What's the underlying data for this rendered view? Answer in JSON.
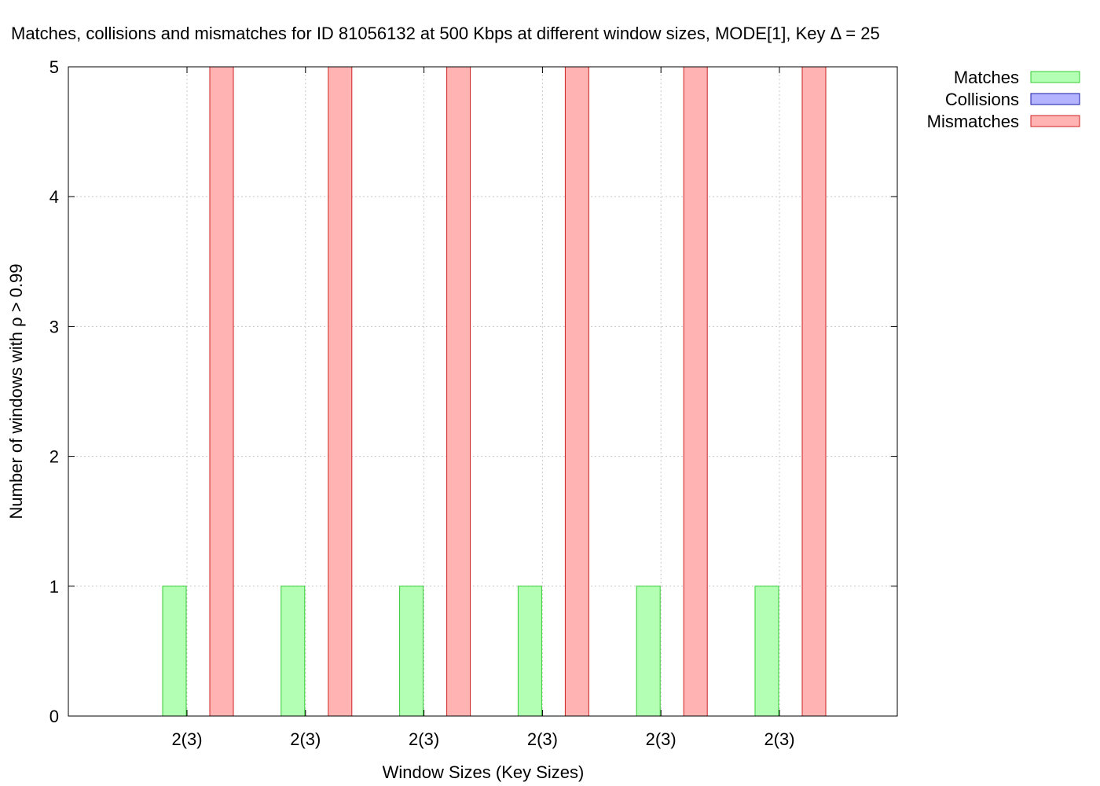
{
  "chart_data": {
    "type": "bar",
    "title": "Matches, collisions and mismatches for ID 81056132 at 500 Kbps at different window sizes, MODE[1], Key Δ = 25",
    "xlabel": "Window Sizes (Key Sizes)",
    "ylabel": "Number of windows with ρ > 0.99",
    "categories": [
      "2(3)",
      "2(3)",
      "2(3)",
      "2(3)",
      "2(3)",
      "2(3)"
    ],
    "ylim": [
      0,
      5
    ],
    "yticks": [
      0,
      1,
      2,
      3,
      4,
      5
    ],
    "grid": true,
    "legend_position": "outside-top-right",
    "series": [
      {
        "name": "Matches",
        "values": [
          1,
          1,
          1,
          1,
          1,
          1
        ],
        "fill": "#b3ffb3",
        "stroke": "#33cc33"
      },
      {
        "name": "Collisions",
        "values": [
          0,
          0,
          0,
          0,
          0,
          0
        ],
        "fill": "#b3b3ff",
        "stroke": "#1a1aa6"
      },
      {
        "name": "Mismatches",
        "values": [
          5,
          5,
          5,
          5,
          5,
          5
        ],
        "fill": "#ffb3b3",
        "stroke": "#cc2222"
      }
    ]
  }
}
